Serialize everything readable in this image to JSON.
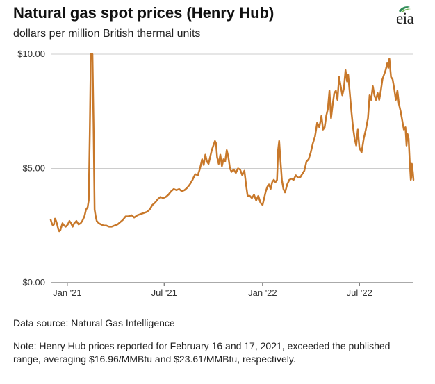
{
  "title": "Natural gas spot prices (Henry Hub)",
  "subtitle": "dollars per million British thermal units",
  "logo_text": "eia",
  "source": "Data source: Natural Gas Intelligence",
  "note": "Note: Henry Hub prices reported for February 16 and 17, 2021, exceeded the published range, averaging $16.96/MMBtu and $23.61/MMBtu, respectively.",
  "colors": {
    "line": "#c8782a",
    "grid": "#cccccc",
    "axis": "#555555",
    "logo_leaf": "#2e8b57",
    "logo_leaf_accent": "#6ab04c"
  },
  "chart_data": {
    "type": "line",
    "x_unit": "date",
    "ylim": [
      0,
      10
    ],
    "xlim": [
      "2020-12-01",
      "2022-10-10"
    ],
    "grid": "horizontal",
    "yticks": [
      {
        "value": 0,
        "label": "$0.00"
      },
      {
        "value": 5,
        "label": "$5.00"
      },
      {
        "value": 10,
        "label": "$10.00"
      }
    ],
    "xticks": [
      {
        "value": "2021-01-01",
        "label": "Jan '21"
      },
      {
        "value": "2021-07-01",
        "label": "Jul '21"
      },
      {
        "value": "2022-01-01",
        "label": "Jan '22"
      },
      {
        "value": "2022-07-01",
        "label": "Jul '22"
      }
    ],
    "series": [
      {
        "points": [
          [
            "2020-12-01",
            2.75
          ],
          [
            "2020-12-03",
            2.6
          ],
          [
            "2020-12-05",
            2.5
          ],
          [
            "2020-12-07",
            2.55
          ],
          [
            "2020-12-09",
            2.8
          ],
          [
            "2020-12-11",
            2.7
          ],
          [
            "2020-12-13",
            2.55
          ],
          [
            "2020-12-15",
            2.35
          ],
          [
            "2020-12-17",
            2.25
          ],
          [
            "2020-12-19",
            2.3
          ],
          [
            "2020-12-21",
            2.45
          ],
          [
            "2020-12-23",
            2.6
          ],
          [
            "2020-12-26",
            2.5
          ],
          [
            "2020-12-29",
            2.45
          ],
          [
            "2021-01-02",
            2.55
          ],
          [
            "2021-01-05",
            2.7
          ],
          [
            "2021-01-08",
            2.6
          ],
          [
            "2021-01-11",
            2.45
          ],
          [
            "2021-01-14",
            2.6
          ],
          [
            "2021-01-18",
            2.7
          ],
          [
            "2021-01-22",
            2.55
          ],
          [
            "2021-01-26",
            2.6
          ],
          [
            "2021-01-29",
            2.7
          ],
          [
            "2021-02-02",
            2.9
          ],
          [
            "2021-02-05",
            3.2
          ],
          [
            "2021-02-08",
            3.3
          ],
          [
            "2021-02-10",
            3.6
          ],
          [
            "2021-02-12",
            6.5
          ],
          [
            "2021-02-14",
            10.0
          ],
          [
            "2021-02-17",
            10.0
          ],
          [
            "2021-02-19",
            7.0
          ],
          [
            "2021-02-21",
            3.2
          ],
          [
            "2021-02-23",
            2.9
          ],
          [
            "2021-02-25",
            2.7
          ],
          [
            "2021-03-01",
            2.6
          ],
          [
            "2021-03-05",
            2.55
          ],
          [
            "2021-03-10",
            2.5
          ],
          [
            "2021-03-15",
            2.5
          ],
          [
            "2021-03-20",
            2.45
          ],
          [
            "2021-03-25",
            2.45
          ],
          [
            "2021-03-30",
            2.5
          ],
          [
            "2021-04-05",
            2.55
          ],
          [
            "2021-04-10",
            2.65
          ],
          [
            "2021-04-15",
            2.75
          ],
          [
            "2021-04-20",
            2.9
          ],
          [
            "2021-04-25",
            2.9
          ],
          [
            "2021-05-01",
            2.95
          ],
          [
            "2021-05-06",
            2.85
          ],
          [
            "2021-05-12",
            2.95
          ],
          [
            "2021-05-18",
            3.0
          ],
          [
            "2021-05-24",
            3.05
          ],
          [
            "2021-05-30",
            3.1
          ],
          [
            "2021-06-04",
            3.2
          ],
          [
            "2021-06-09",
            3.4
          ],
          [
            "2021-06-14",
            3.5
          ],
          [
            "2021-06-19",
            3.65
          ],
          [
            "2021-06-24",
            3.75
          ],
          [
            "2021-06-29",
            3.7
          ],
          [
            "2021-07-04",
            3.75
          ],
          [
            "2021-07-09",
            3.85
          ],
          [
            "2021-07-14",
            4.0
          ],
          [
            "2021-07-19",
            4.1
          ],
          [
            "2021-07-24",
            4.05
          ],
          [
            "2021-07-29",
            4.1
          ],
          [
            "2021-08-03",
            4.0
          ],
          [
            "2021-08-08",
            4.05
          ],
          [
            "2021-08-13",
            4.15
          ],
          [
            "2021-08-18",
            4.3
          ],
          [
            "2021-08-23",
            4.5
          ],
          [
            "2021-08-28",
            4.75
          ],
          [
            "2021-09-02",
            4.7
          ],
          [
            "2021-09-06",
            5.0
          ],
          [
            "2021-09-10",
            5.4
          ],
          [
            "2021-09-13",
            5.15
          ],
          [
            "2021-09-16",
            5.6
          ],
          [
            "2021-09-19",
            5.3
          ],
          [
            "2021-09-22",
            5.2
          ],
          [
            "2021-09-25",
            5.5
          ],
          [
            "2021-09-28",
            5.8
          ],
          [
            "2021-10-01",
            6.0
          ],
          [
            "2021-10-04",
            6.2
          ],
          [
            "2021-10-06",
            6.1
          ],
          [
            "2021-10-08",
            5.5
          ],
          [
            "2021-10-11",
            5.2
          ],
          [
            "2021-10-14",
            5.6
          ],
          [
            "2021-10-17",
            5.1
          ],
          [
            "2021-10-20",
            5.4
          ],
          [
            "2021-10-23",
            5.3
          ],
          [
            "2021-10-26",
            5.8
          ],
          [
            "2021-10-29",
            5.5
          ],
          [
            "2021-11-01",
            5.0
          ],
          [
            "2021-11-04",
            4.85
          ],
          [
            "2021-11-08",
            4.95
          ],
          [
            "2021-11-12",
            4.8
          ],
          [
            "2021-11-16",
            5.0
          ],
          [
            "2021-11-20",
            4.95
          ],
          [
            "2021-11-24",
            4.7
          ],
          [
            "2021-11-28",
            4.9
          ],
          [
            "2021-12-01",
            4.3
          ],
          [
            "2021-12-04",
            3.8
          ],
          [
            "2021-12-08",
            3.8
          ],
          [
            "2021-12-12",
            3.7
          ],
          [
            "2021-12-16",
            3.85
          ],
          [
            "2021-12-20",
            3.6
          ],
          [
            "2021-12-24",
            3.8
          ],
          [
            "2021-12-28",
            3.5
          ],
          [
            "2022-01-01",
            3.4
          ],
          [
            "2022-01-04",
            3.7
          ],
          [
            "2022-01-07",
            4.0
          ],
          [
            "2022-01-10",
            4.2
          ],
          [
            "2022-01-13",
            4.3
          ],
          [
            "2022-01-16",
            4.1
          ],
          [
            "2022-01-19",
            4.4
          ],
          [
            "2022-01-22",
            4.5
          ],
          [
            "2022-01-25",
            4.4
          ],
          [
            "2022-01-28",
            4.5
          ],
          [
            "2022-01-30",
            5.8
          ],
          [
            "2022-02-01",
            6.2
          ],
          [
            "2022-02-03",
            5.5
          ],
          [
            "2022-02-06",
            4.5
          ],
          [
            "2022-02-09",
            4.1
          ],
          [
            "2022-02-12",
            3.95
          ],
          [
            "2022-02-16",
            4.3
          ],
          [
            "2022-02-20",
            4.5
          ],
          [
            "2022-02-24",
            4.55
          ],
          [
            "2022-02-28",
            4.5
          ],
          [
            "2022-03-04",
            4.7
          ],
          [
            "2022-03-08",
            4.6
          ],
          [
            "2022-03-12",
            4.6
          ],
          [
            "2022-03-16",
            4.75
          ],
          [
            "2022-03-20",
            4.9
          ],
          [
            "2022-03-24",
            5.3
          ],
          [
            "2022-03-28",
            5.4
          ],
          [
            "2022-04-01",
            5.7
          ],
          [
            "2022-04-05",
            6.1
          ],
          [
            "2022-04-09",
            6.4
          ],
          [
            "2022-04-13",
            7.0
          ],
          [
            "2022-04-17",
            6.8
          ],
          [
            "2022-04-21",
            7.3
          ],
          [
            "2022-04-24",
            6.7
          ],
          [
            "2022-04-27",
            6.8
          ],
          [
            "2022-04-30",
            7.3
          ],
          [
            "2022-05-03",
            7.6
          ],
          [
            "2022-05-06",
            8.4
          ],
          [
            "2022-05-09",
            7.2
          ],
          [
            "2022-05-12",
            7.8
          ],
          [
            "2022-05-15",
            8.3
          ],
          [
            "2022-05-18",
            8.4
          ],
          [
            "2022-05-21",
            8.0
          ],
          [
            "2022-05-24",
            9.0
          ],
          [
            "2022-05-27",
            8.6
          ],
          [
            "2022-05-30",
            8.2
          ],
          [
            "2022-06-02",
            8.5
          ],
          [
            "2022-06-05",
            9.3
          ],
          [
            "2022-06-08",
            8.8
          ],
          [
            "2022-06-10",
            9.1
          ],
          [
            "2022-06-13",
            8.3
          ],
          [
            "2022-06-16",
            7.5
          ],
          [
            "2022-06-19",
            6.8
          ],
          [
            "2022-06-22",
            6.3
          ],
          [
            "2022-06-25",
            6.0
          ],
          [
            "2022-06-28",
            6.7
          ],
          [
            "2022-07-01",
            5.9
          ],
          [
            "2022-07-05",
            5.7
          ],
          [
            "2022-07-09",
            6.3
          ],
          [
            "2022-07-13",
            6.7
          ],
          [
            "2022-07-17",
            7.2
          ],
          [
            "2022-07-20",
            8.2
          ],
          [
            "2022-07-23",
            8.0
          ],
          [
            "2022-07-26",
            8.6
          ],
          [
            "2022-07-29",
            8.2
          ],
          [
            "2022-08-01",
            8.0
          ],
          [
            "2022-08-04",
            8.3
          ],
          [
            "2022-08-07",
            8.0
          ],
          [
            "2022-08-10",
            8.4
          ],
          [
            "2022-08-13",
            8.9
          ],
          [
            "2022-08-16",
            9.1
          ],
          [
            "2022-08-19",
            9.3
          ],
          [
            "2022-08-22",
            9.6
          ],
          [
            "2022-08-24",
            9.4
          ],
          [
            "2022-08-26",
            9.8
          ],
          [
            "2022-08-29",
            9.0
          ],
          [
            "2022-09-01",
            8.9
          ],
          [
            "2022-09-04",
            8.5
          ],
          [
            "2022-09-07",
            8.0
          ],
          [
            "2022-09-10",
            8.4
          ],
          [
            "2022-09-13",
            7.8
          ],
          [
            "2022-09-16",
            7.5
          ],
          [
            "2022-09-19",
            7.1
          ],
          [
            "2022-09-22",
            6.7
          ],
          [
            "2022-09-25",
            6.8
          ],
          [
            "2022-09-27",
            6.0
          ],
          [
            "2022-09-29",
            6.5
          ],
          [
            "2022-10-01",
            6.3
          ],
          [
            "2022-10-03",
            5.3
          ],
          [
            "2022-10-05",
            4.5
          ],
          [
            "2022-10-06",
            4.6
          ],
          [
            "2022-10-07",
            5.2
          ],
          [
            "2022-10-08",
            5.0
          ],
          [
            "2022-10-09",
            4.8
          ],
          [
            "2022-10-10",
            4.5
          ]
        ]
      }
    ]
  }
}
